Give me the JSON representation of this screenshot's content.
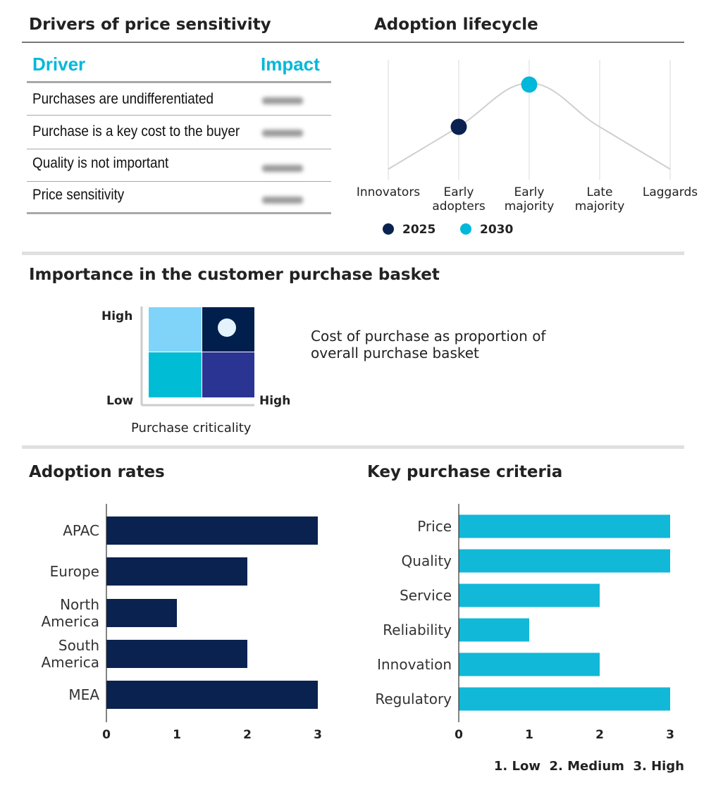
{
  "drivers": {
    "title": "Drivers of price sensitivity",
    "headers": {
      "driver": "Driver",
      "impact": "Impact"
    },
    "rows": [
      {
        "driver": "Purchases are undifferentiated"
      },
      {
        "driver": "Purchase is a key cost to the buyer"
      },
      {
        "driver": "Quality is not important"
      },
      {
        "driver": "Price sensitivity"
      }
    ],
    "header_color": "#00b8d9"
  },
  "lifecycle": {
    "title": "Adoption lifecycle",
    "stages": [
      "Innovators",
      "Early adopters",
      "Early majority",
      "Late majority",
      "Laggards"
    ],
    "stage_lines": [
      [
        "Innovators"
      ],
      [
        "Early",
        "adopters"
      ],
      [
        "Early",
        "majority"
      ],
      [
        "Late",
        "majority"
      ],
      [
        "Laggards"
      ]
    ],
    "markers": [
      {
        "year": "2025",
        "stage": "Early adopters",
        "color": "#0a2250"
      },
      {
        "year": "2030",
        "stage": "Early majority",
        "color": "#00b8d9"
      }
    ]
  },
  "basket": {
    "title": "Importance in the customer purchase basket",
    "y_high": "High",
    "y_low": "Low",
    "x_high": "High",
    "x_label": "Purchase criticality",
    "description_lines": [
      "Cost of purchase as proportion of",
      "overall purchase basket"
    ],
    "cell_colors": {
      "top_left": "#80d4fa",
      "top_right": "#001f4d",
      "bottom_left": "#00bcd4",
      "bottom_right": "#2a3492"
    },
    "marker_cell": "top_right",
    "marker_color": "#e3f2fd"
  },
  "chart_data": [
    {
      "type": "bar",
      "orientation": "horizontal",
      "title": "Adoption rates",
      "categories": [
        "APAC",
        "Europe",
        "North America",
        "South America",
        "MEA"
      ],
      "category_lines": [
        [
          "APAC"
        ],
        [
          "Europe"
        ],
        [
          "North",
          "America"
        ],
        [
          "South",
          "America"
        ],
        [
          "MEA"
        ]
      ],
      "values": [
        3,
        2,
        1,
        2,
        3
      ],
      "xlim": [
        0,
        3
      ],
      "xticks": [
        "0",
        "1",
        "2",
        "3"
      ],
      "color": "#0a2250",
      "grid": false
    },
    {
      "type": "bar",
      "orientation": "horizontal",
      "title": "Key purchase criteria",
      "categories": [
        "Price",
        "Quality",
        "Service",
        "Reliability",
        "Innovation",
        "Regulatory"
      ],
      "values": [
        3,
        3,
        2,
        1,
        2,
        3
      ],
      "xlim": [
        0,
        3
      ],
      "xticks": [
        "0",
        "1",
        "2",
        "3"
      ],
      "color": "#12b8d8",
      "grid": false,
      "scale_legend": [
        "1. Low",
        "2. Medium",
        "3. High"
      ]
    }
  ]
}
